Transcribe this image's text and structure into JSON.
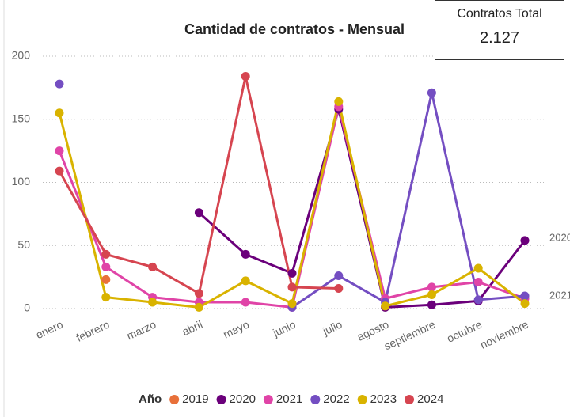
{
  "chart_data": {
    "type": "line",
    "title": "Cantidad de contratos - Mensual",
    "categories": [
      "enero",
      "febrero",
      "marzo",
      "abril",
      "mayo",
      "junio",
      "julio",
      "agosto",
      "septiembre",
      "octubre",
      "noviembre"
    ],
    "ylim": [
      0,
      200
    ],
    "yticks": [
      0,
      50,
      100,
      150,
      200
    ],
    "grid": true,
    "legend_title": "Año",
    "legend_position": "bottom",
    "series": [
      {
        "name": "2019",
        "color": "#E8703A",
        "values": [
          null,
          23,
          null,
          null,
          null,
          null,
          null,
          null,
          null,
          null,
          null
        ]
      },
      {
        "name": "2020",
        "color": "#6B007B",
        "values": [
          null,
          null,
          null,
          76,
          43,
          28,
          158,
          1,
          3,
          6,
          54
        ]
      },
      {
        "name": "2021",
        "color": "#E044A7",
        "values": [
          125,
          33,
          9,
          5,
          5,
          1,
          160,
          8,
          17,
          21,
          8
        ]
      },
      {
        "name": "2022",
        "color": "#744EC2",
        "values": [
          178,
          null,
          null,
          null,
          null,
          1,
          26,
          5,
          171,
          7,
          10
        ]
      },
      {
        "name": "2023",
        "color": "#D9B300",
        "values": [
          155,
          9,
          5,
          1,
          22,
          4,
          164,
          2,
          11,
          32,
          4
        ]
      },
      {
        "name": "2024",
        "color": "#D64550",
        "values": [
          109,
          43,
          33,
          12,
          184,
          17,
          16,
          null,
          null,
          null,
          null
        ]
      }
    ]
  },
  "card": {
    "title": "Contratos Total",
    "value": "2.127"
  }
}
